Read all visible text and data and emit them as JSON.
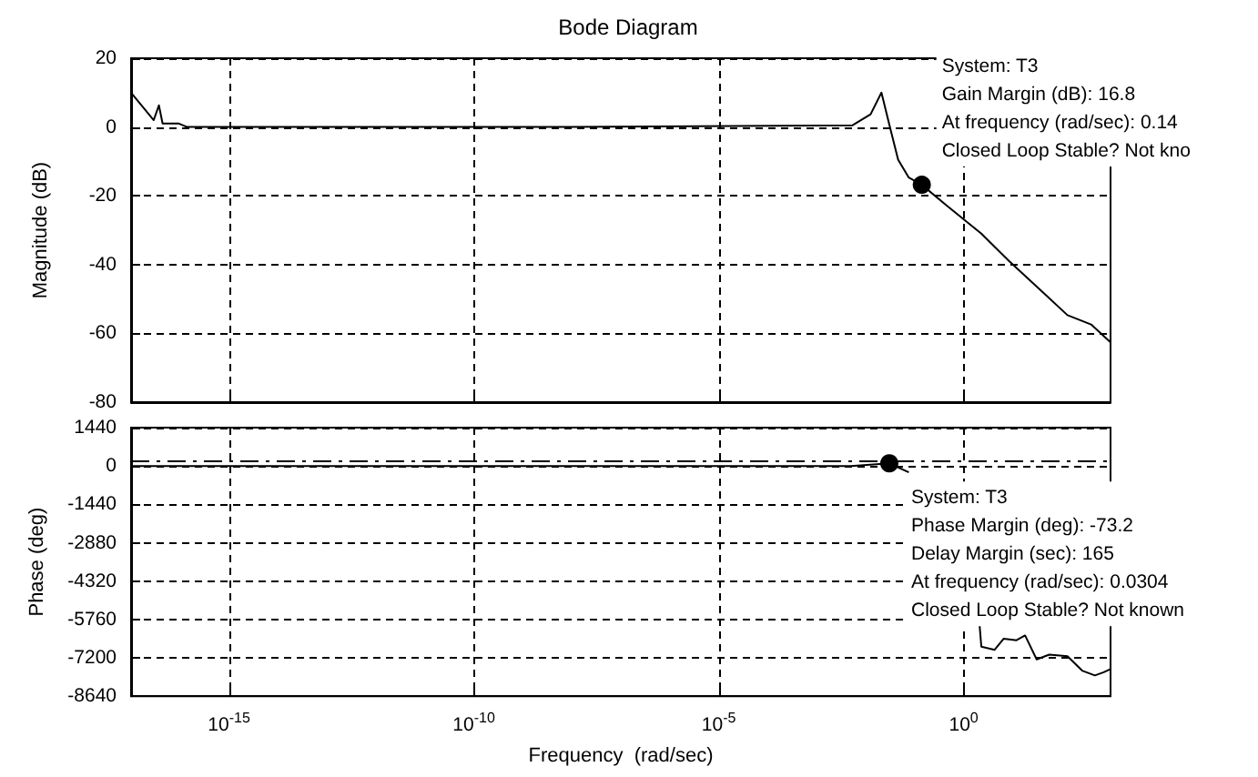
{
  "chart_data": [
    {
      "type": "line",
      "title": "Bode Diagram",
      "ylabel": "Magnitude (dB)",
      "color": "#000000",
      "x": [
        1e-17,
        2.9e-17,
        3.7e-17,
        4.4e-17,
        9.5e-17,
        1.4e-16,
        1e-08,
        0.0054,
        0.0126,
        0.021,
        0.03,
        0.046,
        0.076,
        0.14,
        0.43,
        1,
        2.3,
        8.5,
        44,
        132,
        400,
        1000
      ],
      "values": [
        10,
        2,
        6.3,
        1,
        1,
        0,
        0,
        0.5,
        3.7,
        10,
        1,
        -9.5,
        -14.7,
        -16.8,
        -22.6,
        -26.8,
        -31,
        -39,
        -48.4,
        -54.7,
        -57.4,
        -62.6
      ],
      "xlim": [
        1e-17,
        1000
      ],
      "xticks": [
        {
          "value": 1e-15,
          "label": null
        },
        {
          "value": 1e-10,
          "label": null
        },
        {
          "value": 1e-05,
          "label": null
        },
        {
          "value": 1,
          "label": null
        }
      ],
      "ylim": [
        -80,
        20
      ],
      "yticks": [
        -80,
        -60,
        -40,
        -20,
        0,
        20
      ],
      "log": "x",
      "grid": true,
      "tick_labels": "y",
      "annotations": [
        {
          "text": "System: T3\nGain Margin (dB): 16.8\nAt frequency (rad/sec): 0.14\nClosed Loop Stable? Not kno",
          "x": 0.14,
          "y": -16.8
        }
      ]
    },
    {
      "type": "line",
      "xlabel": "Frequency  (rad/sec)",
      "ylabel": "Phase (deg)",
      "color": "#000000",
      "x": [
        1e-17,
        1e-08,
        0.005,
        0.0304,
        0.076,
        1.2,
        2.1,
        2.3,
        4.3,
        6.6,
        12,
        18,
        31,
        56,
        132,
        263,
        479,
        724,
        1000
      ],
      "values": [
        0,
        0,
        0,
        100,
        -240,
        null,
        -5880,
        -6780,
        -6900,
        -6480,
        -6540,
        -6360,
        -7260,
        -7080,
        -7140,
        -7680,
        -7860,
        -7740,
        -7620
      ],
      "xlim": [
        1e-17,
        1000
      ],
      "xticks": [
        {
          "value": 1e-15,
          "label": "10$^{-15}$"
        },
        {
          "value": 1e-10,
          "label": "10$^{-10}$"
        },
        {
          "value": 1e-05,
          "label": "10$^{-5}$"
        },
        {
          "value": 1,
          "label": "10$^{0}$"
        }
      ],
      "ylim": [
        -8640,
        1440
      ],
      "yticks": [
        -8640,
        -7200,
        -5760,
        -4320,
        -2880,
        -1440,
        0,
        1440
      ],
      "log": "x",
      "grid": true,
      "ref_lines": [
        {
          "axis": "y",
          "value": 180,
          "line_style": "dashed"
        }
      ],
      "annotations": [
        {
          "text": "System: T3\nPhase Margin (deg): -73.2\nDelay Margin (sec): 165\nAt frequency (rad/sec): 0.0304\nClosed Loop Stable? Not known",
          "x": 0.0304,
          "y": 100
        }
      ]
    }
  ]
}
